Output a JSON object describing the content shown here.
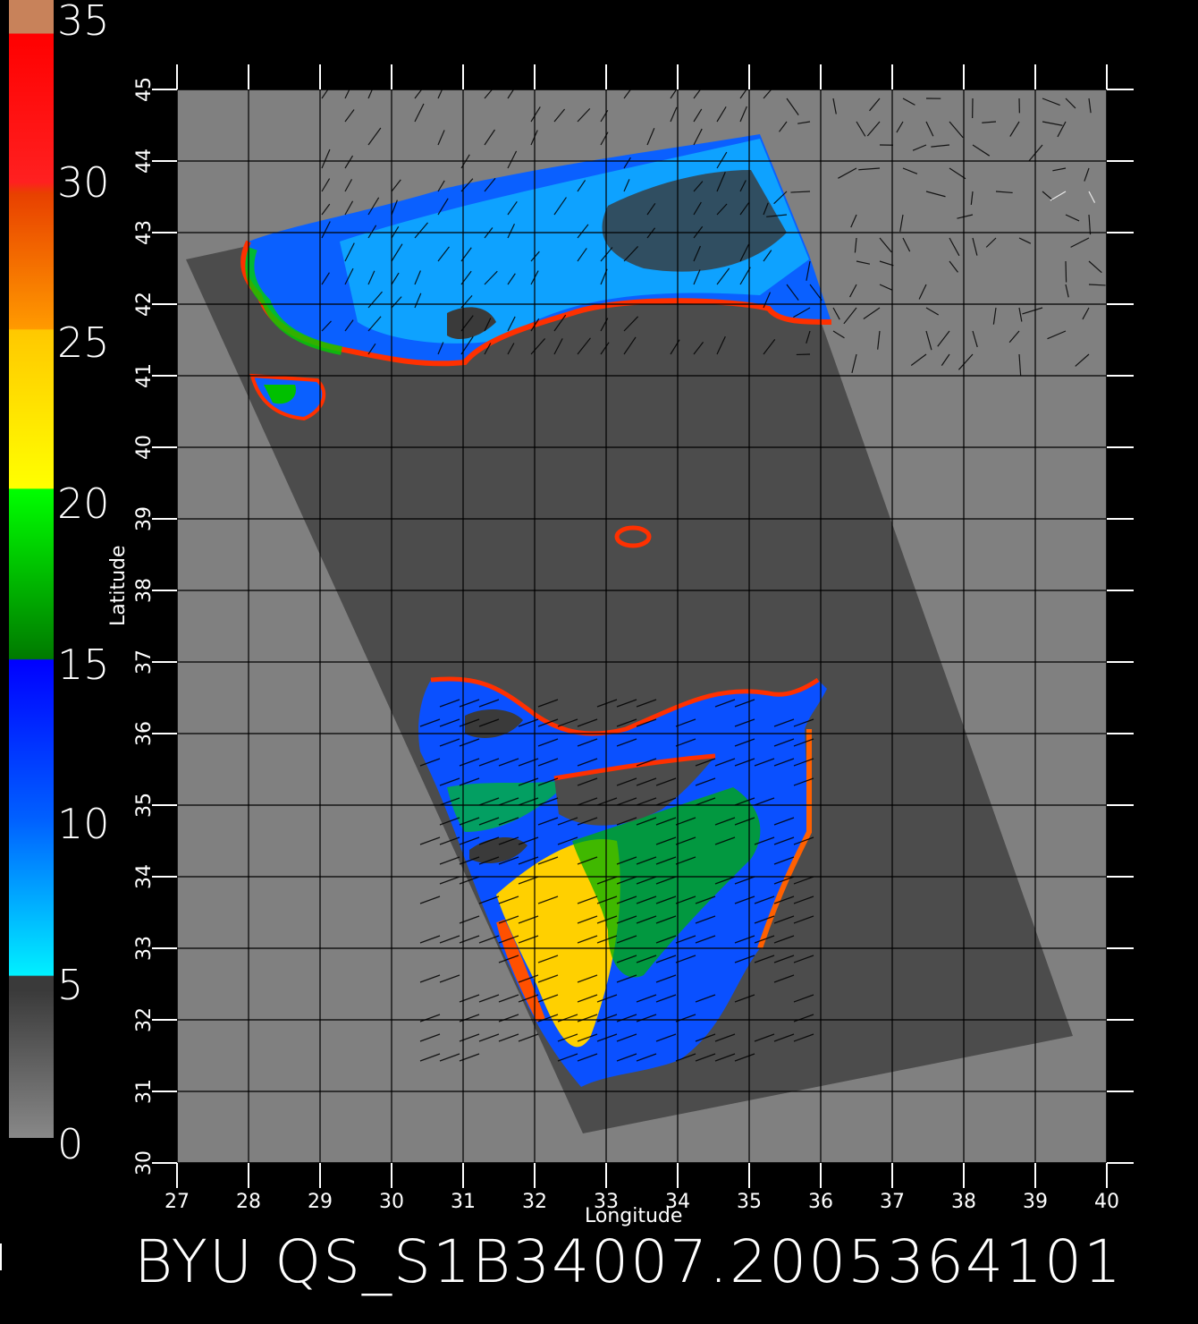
{
  "title": "BYU  QS_S1B34007.2005364101",
  "map": {
    "xlabel": "Longitude",
    "ylabel": "Latitude",
    "lon_ticks": [
      "27",
      "28",
      "29",
      "30",
      "31",
      "32",
      "33",
      "34",
      "35",
      "36",
      "37",
      "38",
      "39",
      "40"
    ],
    "lat_ticks": [
      "30",
      "31",
      "32",
      "33",
      "34",
      "35",
      "36",
      "37",
      "38",
      "39",
      "40",
      "41",
      "42",
      "43",
      "44",
      "45"
    ],
    "lon_range": [
      27,
      40
    ],
    "lat_range": [
      30,
      45
    ],
    "grid": true
  },
  "colorbar": {
    "labels": [
      "0",
      "5",
      "10",
      "15",
      "20",
      "25",
      "30",
      "35"
    ],
    "range": [
      0,
      35
    ],
    "colors": {
      "low_gray": "#888888",
      "dark_gray": "#3a3a3a",
      "cyan": "#00f0ff",
      "blue": "#0000ff",
      "green_dark": "#007a00",
      "green": "#00ff00",
      "yellow": "#ffff00",
      "orange": "#ff9a00",
      "red": "#ff0000",
      "top": "#c8825a"
    }
  },
  "colors": {
    "background": "#000000",
    "land": "#808080",
    "swath": "#4c4c4c"
  }
}
